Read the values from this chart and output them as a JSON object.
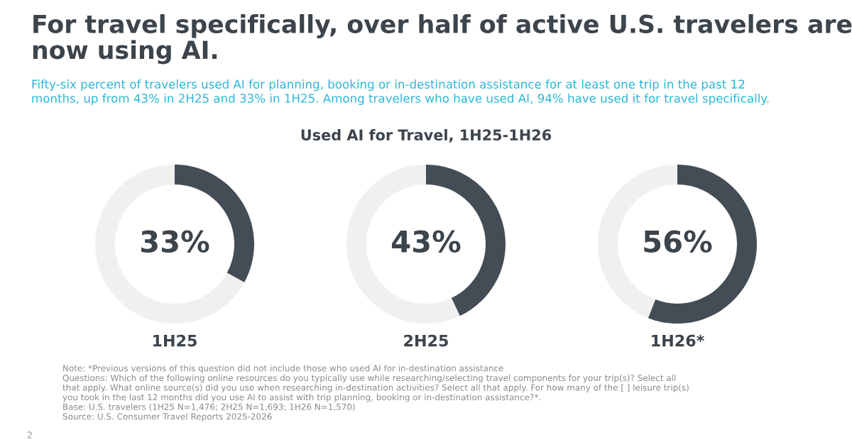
{
  "chart_data": [
    {
      "type": "donut",
      "title": "For travel specifically, over half of active U.S. travelers are\nnow using AI.",
      "subtitle": "Fifty-six percent of travelers used AI for planning, booking or in-destination assistance for at least one trip in the past 12\nmonths, up from 43% in 2H25 and 33% in 1H25. Among travelers who have used AI, 94% have used it for travel specifically.",
      "xlabel": "1H25",
      "categories": [
        null,
        null
      ],
      "values": [
        33,
        67
      ],
      "colors": [
        "#444d55",
        "#f0f0f0"
      ],
      "value_labels": [
        "33%",
        null
      ],
      "annotations": [
        "Used AI for Travel, 1H25-1H26",
        "Note: *Previous versions of this question did not include those who used AI for in-destination assistance",
        "Questions: Which of the following online resources do you typically use while researching/selecting travel components for your trip(s)? Select all",
        "that apply. What online source(s) did you use when researching in-destination activities? Select all that apply. For how many of the [ ] leisure trip(s)",
        "you took in the last 12 months did you use AI to assist with trip planning, booking or in-destination assistance?*.",
        "Base: U.S. travelers (1H25 N=1,476; 2H25 N=1,693; 1H26 N=1,570)",
        "Source: U.S. Consumer Travel Reports 2025-2026",
        "2"
      ]
    },
    {
      "type": "donut",
      "xlabel": "2H25",
      "categories": [
        null,
        null
      ],
      "values": [
        43,
        57
      ],
      "colors": [
        "#444d55",
        "#f0f0f0"
      ],
      "value_labels": [
        "43%",
        null
      ]
    },
    {
      "type": "donut",
      "xlabel": "1H26*",
      "categories": [
        null,
        null
      ],
      "values": [
        56,
        44
      ],
      "colors": [
        "#444d55",
        "#f0f0f0"
      ],
      "value_labels": [
        "56%",
        null
      ]
    }
  ]
}
